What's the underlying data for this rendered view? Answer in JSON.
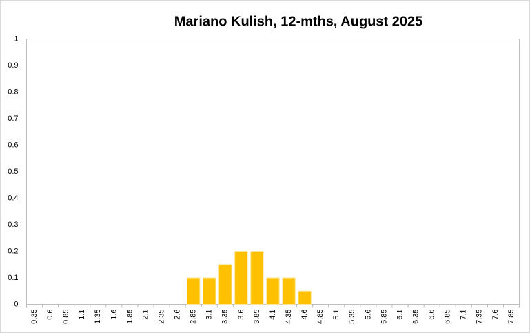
{
  "chart_data": {
    "type": "bar",
    "title": "Mariano Kulish, 12-mths, August 2025",
    "categories": [
      "0.35",
      "0.6",
      "0.85",
      "1.1",
      "1.35",
      "1.6",
      "1.85",
      "2.1",
      "2.35",
      "2.6",
      "2.85",
      "3.1",
      "3.35",
      "3.6",
      "3.85",
      "4.1",
      "4.35",
      "4.6",
      "4.85",
      "5.1",
      "5.35",
      "5.6",
      "5.85",
      "6.1",
      "6.35",
      "6.6",
      "6.85",
      "7.1",
      "7.35",
      "7.6",
      "7.85"
    ],
    "values": [
      0,
      0,
      0,
      0,
      0,
      0,
      0,
      0,
      0,
      0,
      0.1,
      0.1,
      0.15,
      0.2,
      0.2,
      0.1,
      0.1,
      0.05,
      0,
      0,
      0,
      0,
      0,
      0,
      0,
      0,
      0,
      0,
      0,
      0,
      0
    ],
    "color": "#ffc000",
    "ylim": [
      0,
      1
    ],
    "yticks": [
      0,
      0.1,
      0.2,
      0.3,
      0.4,
      0.5,
      0.6,
      0.7,
      0.8,
      0.9,
      1
    ],
    "grid": false
  }
}
